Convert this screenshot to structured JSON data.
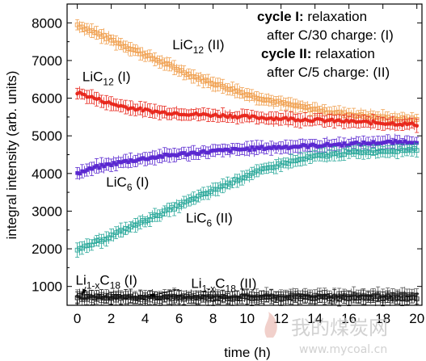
{
  "chart_data": {
    "type": "scatter",
    "xlabel": "time (h)",
    "ylabel": "integral intensity (arb. units)",
    "xlim": [
      -0.6,
      20.3
    ],
    "ylim": [
      500,
      8500
    ],
    "xticks": [
      0,
      2,
      4,
      6,
      8,
      10,
      12,
      14,
      16,
      18,
      20
    ],
    "yticks": [
      1000,
      2000,
      3000,
      4000,
      5000,
      6000,
      7000,
      8000
    ],
    "grid": false,
    "legend_text": [
      {
        "bold": "cycle I:",
        "rest": " relaxation"
      },
      {
        "bold": "",
        "rest": "after C/30 charge: (I)"
      },
      {
        "bold": "cycle II:",
        "rest": " relaxation"
      },
      {
        "bold": "",
        "rest": "after C/5 charge: (II)"
      }
    ],
    "series": [
      {
        "color": "#f0a050",
        "marker": "square-open",
        "x": [
          0,
          1,
          2,
          3,
          4,
          5,
          6,
          7,
          8,
          9,
          10,
          11,
          12,
          13,
          14,
          15,
          16,
          17,
          18,
          19,
          20
        ],
        "y": [
          7950,
          7750,
          7550,
          7350,
          7150,
          6950,
          6750,
          6550,
          6400,
          6250,
          6100,
          5980,
          5870,
          5780,
          5700,
          5630,
          5570,
          5520,
          5480,
          5450,
          5430
        ]
      },
      {
        "color": "#e8281e",
        "marker": "circle",
        "x": [
          0,
          1,
          2,
          3,
          4,
          5,
          6,
          7,
          8,
          9,
          10,
          11,
          12,
          13,
          14,
          15,
          16,
          17,
          18,
          19,
          20
        ],
        "y": [
          6150,
          6000,
          5850,
          5750,
          5680,
          5620,
          5600,
          5570,
          5550,
          5530,
          5500,
          5480,
          5460,
          5440,
          5420,
          5400,
          5380,
          5360,
          5340,
          5320,
          5300
        ]
      },
      {
        "color": "#5a28d0",
        "marker": "square",
        "x": [
          0,
          1,
          2,
          3,
          4,
          5,
          6,
          7,
          8,
          9,
          10,
          11,
          12,
          13,
          14,
          15,
          16,
          17,
          18,
          19,
          20
        ],
        "y": [
          4000,
          4150,
          4250,
          4330,
          4400,
          4460,
          4510,
          4550,
          4590,
          4620,
          4650,
          4680,
          4700,
          4720,
          4740,
          4760,
          4780,
          4800,
          4820,
          4830,
          4850
        ]
      },
      {
        "color": "#2aa89a",
        "marker": "square-open",
        "x": [
          0,
          1,
          2,
          3,
          4,
          5,
          6,
          7,
          8,
          9,
          10,
          11,
          12,
          13,
          14,
          15,
          16,
          17,
          18,
          19,
          20
        ],
        "y": [
          1950,
          2150,
          2350,
          2550,
          2750,
          2950,
          3150,
          3350,
          3550,
          3750,
          3950,
          4100,
          4250,
          4350,
          4450,
          4500,
          4550,
          4580,
          4600,
          4620,
          4650
        ]
      },
      {
        "color": "#555555",
        "marker": "circle",
        "x": [
          0,
          1,
          2,
          3,
          4,
          5,
          6,
          7,
          8,
          9,
          10,
          11,
          12,
          13,
          14,
          15,
          16,
          17,
          18,
          19,
          20
        ],
        "y": [
          700,
          700,
          710,
          710,
          720,
          720,
          730,
          730,
          740,
          740,
          750,
          750,
          750,
          760,
          760,
          760,
          760,
          770,
          770,
          770,
          770
        ]
      },
      {
        "color": "#111111",
        "marker": "square-open",
        "x": [
          0,
          1,
          2,
          3,
          4,
          5,
          6,
          7,
          8,
          9,
          10,
          11,
          12,
          13,
          14,
          15,
          16,
          17,
          18,
          19,
          20
        ],
        "y": [
          730,
          720,
          720,
          710,
          710,
          700,
          700,
          700,
          700,
          700,
          700,
          700,
          700,
          700,
          700,
          700,
          700,
          700,
          700,
          700,
          700
        ]
      }
    ],
    "series_labels": [
      {
        "text": "LiC",
        "sub": "12",
        "tail": " (II)",
        "x": 5.6,
        "y": 7300
      },
      {
        "text": "LiC",
        "sub": "12",
        "tail": " (I)",
        "x": 0.3,
        "y": 6450
      },
      {
        "text": "LiC",
        "sub": "6",
        "tail": " (I)",
        "x": 1.7,
        "y": 3650
      },
      {
        "text": "LiC",
        "sub": "6",
        "tail": " (II)",
        "x": 6.4,
        "y": 2700
      },
      {
        "text": "Li",
        "sub": "1-x",
        "tail": "C",
        "sub2": "18",
        "tail2": " (I)",
        "x": -0.1,
        "y": 1050
      },
      {
        "text": "Li",
        "sub": "1-x",
        "tail": "C",
        "sub2": "18",
        "tail2": " (II)",
        "x": 6.7,
        "y": 960
      }
    ],
    "watermark": {
      "main": "我的煤炭网",
      "sub": "www.mycoal.cn"
    }
  }
}
